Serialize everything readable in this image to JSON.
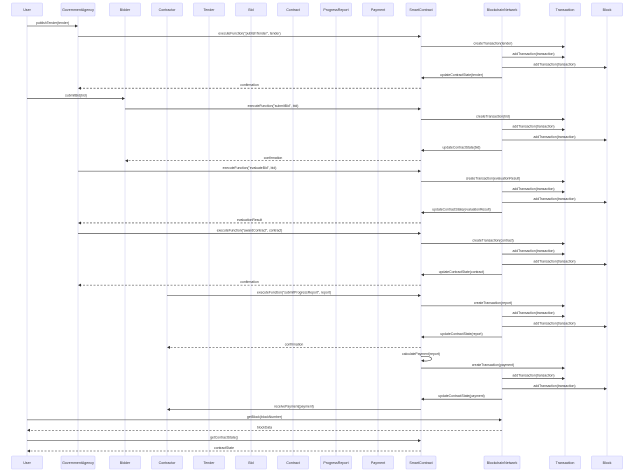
{
  "participants": [
    {
      "id": "User",
      "label": "User"
    },
    {
      "id": "GovernmentAgency",
      "label": "GovernmentAgency"
    },
    {
      "id": "Bidder",
      "label": "Bidder"
    },
    {
      "id": "Contractor",
      "label": "Contractor"
    },
    {
      "id": "Tender",
      "label": "Tender"
    },
    {
      "id": "Bid",
      "label": "Bid"
    },
    {
      "id": "Contract",
      "label": "Contract"
    },
    {
      "id": "ProgressReport",
      "label": "ProgressReport"
    },
    {
      "id": "Payment",
      "label": "Payment"
    },
    {
      "id": "SmartContract",
      "label": "SmartContract"
    },
    {
      "id": "BlockchainNetwork",
      "label": "BlockchainNetwork"
    },
    {
      "id": "Transaction",
      "label": "Transaction"
    },
    {
      "id": "Block",
      "label": "Block"
    }
  ],
  "messages": [
    {
      "from": "User",
      "to": "GovernmentAgency",
      "text": "publishTender(tender)",
      "style": "solid"
    },
    {
      "from": "GovernmentAgency",
      "to": "SmartContract",
      "text": "executeFunction(\"publishTender\", tender)",
      "style": "solid"
    },
    {
      "from": "SmartContract",
      "to": "Transaction",
      "text": "createTransaction(tender)",
      "style": "solid"
    },
    {
      "from": "BlockchainNetwork",
      "to": "Transaction",
      "text": "addTransaction(transaction)",
      "style": "solid"
    },
    {
      "from": "BlockchainNetwork",
      "to": "Block",
      "text": "addTransaction(transaction)",
      "style": "solid"
    },
    {
      "from": "BlockchainNetwork",
      "to": "SmartContract",
      "text": "updateContractState(tender)",
      "style": "solid"
    },
    {
      "from": "SmartContract",
      "to": "GovernmentAgency",
      "text": "confirmation",
      "style": "dashed"
    },
    {
      "from": "User",
      "to": "Bidder",
      "text": "submitBid(bid)",
      "style": "solid"
    },
    {
      "from": "Bidder",
      "to": "SmartContract",
      "text": "executeFunction(\"submitBid\", bid)",
      "style": "solid"
    },
    {
      "from": "SmartContract",
      "to": "Transaction",
      "text": "createTransaction(bid)",
      "style": "solid"
    },
    {
      "from": "BlockchainNetwork",
      "to": "Transaction",
      "text": "addTransaction(transaction)",
      "style": "solid"
    },
    {
      "from": "BlockchainNetwork",
      "to": "Block",
      "text": "addTransaction(transaction)",
      "style": "solid"
    },
    {
      "from": "BlockchainNetwork",
      "to": "SmartContract",
      "text": "updateContractState(bid)",
      "style": "solid"
    },
    {
      "from": "SmartContract",
      "to": "Bidder",
      "text": "confirmation",
      "style": "dashed"
    },
    {
      "from": "GovernmentAgency",
      "to": "SmartContract",
      "text": "executeFunction(\"evaluateBid\", bid)",
      "style": "solid"
    },
    {
      "from": "SmartContract",
      "to": "Transaction",
      "text": "createTransaction(evaluationResult)",
      "style": "solid"
    },
    {
      "from": "BlockchainNetwork",
      "to": "Transaction",
      "text": "addTransaction(transaction)",
      "style": "solid"
    },
    {
      "from": "BlockchainNetwork",
      "to": "Block",
      "text": "addTransaction(transaction)",
      "style": "solid"
    },
    {
      "from": "BlockchainNetwork",
      "to": "SmartContract",
      "text": "updateContractState(evaluationResult)",
      "style": "solid"
    },
    {
      "from": "SmartContract",
      "to": "GovernmentAgency",
      "text": "evaluationResult",
      "style": "dashed"
    },
    {
      "from": "GovernmentAgency",
      "to": "SmartContract",
      "text": "executeFunction(\"awardContract\", contract)",
      "style": "solid"
    },
    {
      "from": "SmartContract",
      "to": "Transaction",
      "text": "createTransaction(contract)",
      "style": "solid"
    },
    {
      "from": "BlockchainNetwork",
      "to": "Transaction",
      "text": "addTransaction(transaction)",
      "style": "solid"
    },
    {
      "from": "BlockchainNetwork",
      "to": "Block",
      "text": "addTransaction(transaction)",
      "style": "solid"
    },
    {
      "from": "BlockchainNetwork",
      "to": "SmartContract",
      "text": "updateContractState(contract)",
      "style": "solid"
    },
    {
      "from": "SmartContract",
      "to": "GovernmentAgency",
      "text": "confirmation",
      "style": "dashed"
    },
    {
      "from": "Contractor",
      "to": "SmartContract",
      "text": "executeFunction(\"submitProgressReport\", report)",
      "style": "solid"
    },
    {
      "from": "SmartContract",
      "to": "Transaction",
      "text": "createTransaction(report)",
      "style": "solid"
    },
    {
      "from": "BlockchainNetwork",
      "to": "Transaction",
      "text": "addTransaction(transaction)",
      "style": "solid"
    },
    {
      "from": "BlockchainNetwork",
      "to": "Block",
      "text": "addTransaction(transaction)",
      "style": "solid"
    },
    {
      "from": "BlockchainNetwork",
      "to": "SmartContract",
      "text": "updateContractState(report)",
      "style": "solid"
    },
    {
      "from": "SmartContract",
      "to": "Contractor",
      "text": "confirmation",
      "style": "dashed"
    },
    {
      "from": "SmartContract",
      "to": "SmartContract",
      "text": "calculatePayment(report)",
      "style": "self"
    },
    {
      "from": "SmartContract",
      "to": "Transaction",
      "text": "createTransaction(payment)",
      "style": "solid"
    },
    {
      "from": "BlockchainNetwork",
      "to": "Transaction",
      "text": "addTransaction(transaction)",
      "style": "solid"
    },
    {
      "from": "BlockchainNetwork",
      "to": "Block",
      "text": "addTransaction(transaction)",
      "style": "solid"
    },
    {
      "from": "BlockchainNetwork",
      "to": "SmartContract",
      "text": "updateContractState(payment)",
      "style": "solid"
    },
    {
      "from": "SmartContract",
      "to": "Contractor",
      "text": "receivePayment(payment)",
      "style": "solid"
    },
    {
      "from": "User",
      "to": "BlockchainNetwork",
      "text": "getBlock(blockNumber)",
      "style": "solid"
    },
    {
      "from": "BlockchainNetwork",
      "to": "User",
      "text": "blockData",
      "style": "dashed"
    },
    {
      "from": "User",
      "to": "SmartContract",
      "text": "getContractState()",
      "style": "solid"
    },
    {
      "from": "SmartContract",
      "to": "User",
      "text": "contractState",
      "style": "dashed"
    }
  ],
  "colors": {
    "actor_fill": "#ECECFF",
    "actor_border": "#CCCCFF",
    "lifeline": "#C8C8EE",
    "line": "#333333",
    "text": "#333333"
  }
}
